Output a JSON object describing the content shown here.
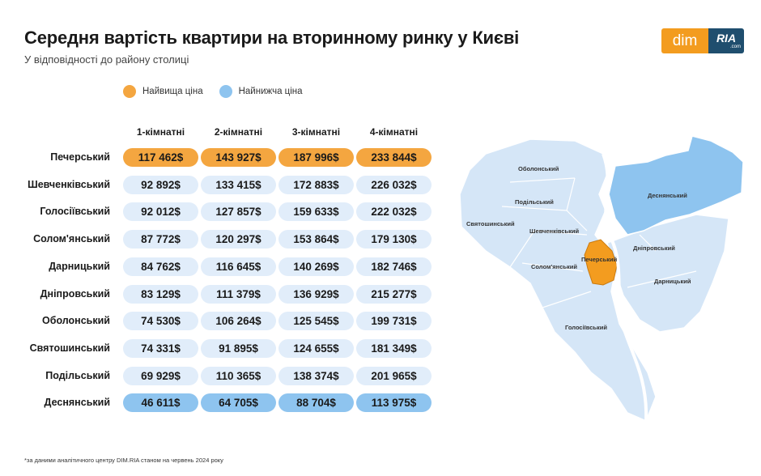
{
  "header": {
    "title": "Середня вартість квартири на вторинному ринку у Києві",
    "subtitle": "У відповідності до району столиці"
  },
  "logo": {
    "dim": "dim",
    "ria": "RIA",
    "com": ".com"
  },
  "legend": {
    "high": {
      "label": "Найвища ціна",
      "color": "#f4a640"
    },
    "low": {
      "label": "Найнижча ціна",
      "color": "#8ec4ef"
    }
  },
  "colors": {
    "default_cell": "#e1edfa",
    "high": "#f4a640",
    "low": "#8ec4ef",
    "map_region": "#d5e6f7",
    "map_river": "#ffffff"
  },
  "chart_data": {
    "type": "table",
    "columns": [
      "1-кімнатні",
      "2-кімнатні",
      "3-кімнатні",
      "4-кімнатні"
    ],
    "rows": [
      {
        "district": "Печерський",
        "values": [
          "117 462$",
          "143 927$",
          "187 996$",
          "233 844$"
        ],
        "highlight": "high"
      },
      {
        "district": "Шевченківський",
        "values": [
          "92 892$",
          "133 415$",
          "172 883$",
          "226 032$"
        ],
        "highlight": "none"
      },
      {
        "district": "Голосіївський",
        "values": [
          "92 012$",
          "127 857$",
          "159 633$",
          "222 032$"
        ],
        "highlight": "none"
      },
      {
        "district": "Солом'янський",
        "values": [
          "87 772$",
          "120 297$",
          "153 864$",
          "179 130$"
        ],
        "highlight": "none"
      },
      {
        "district": "Дарницький",
        "values": [
          "84 762$",
          "116 645$",
          "140 269$",
          "182 746$"
        ],
        "highlight": "none"
      },
      {
        "district": "Дніпровський",
        "values": [
          "83 129$",
          "111 379$",
          "136 929$",
          "215 277$"
        ],
        "highlight": "none"
      },
      {
        "district": "Оболонський",
        "values": [
          "74 530$",
          "106 264$",
          "125 545$",
          "199 731$"
        ],
        "highlight": "none"
      },
      {
        "district": "Святошинський",
        "values": [
          "74 331$",
          "91 895$",
          "124 655$",
          "181 349$"
        ],
        "highlight": "none"
      },
      {
        "district": "Подільський",
        "values": [
          "69 929$",
          "110 365$",
          "138 374$",
          "201 965$"
        ],
        "highlight": "none"
      },
      {
        "district": "Деснянський",
        "values": [
          "46 611$",
          "64 705$",
          "88 704$",
          "113 975$"
        ],
        "highlight": "low"
      }
    ]
  },
  "map": {
    "labels": {
      "obolonskyi": "Оболонський",
      "podilskyi": "Подільський",
      "sviatoshynskyi": "Святошинський",
      "shevchenkivskyi": "Шевченківський",
      "desnianskyi": "Деснянський",
      "pecherskyi": "Печерський",
      "dniprovskyi": "Дніпровський",
      "solomianskyi": "Солом'янський",
      "darnytskyi": "Дарницький",
      "holosiivskyi": "Голосіївський"
    }
  },
  "footnote": "*за даними аналітичного центру DIM.RIA станом на червень 2024 року"
}
